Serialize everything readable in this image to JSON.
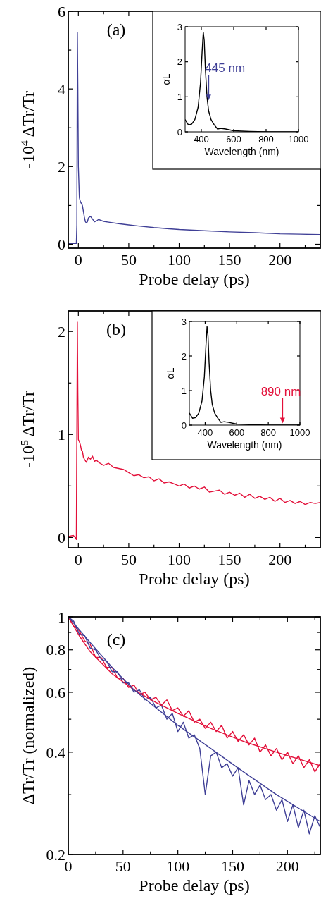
{
  "chart_data": [
    {
      "type": "line",
      "title": "(a)",
      "xlabel": "Probe delay (ps)",
      "ylabel": "-10$^{4}$ ΔTr/Tr",
      "xlim": [
        -10,
        240
      ],
      "ylim": [
        -0.1,
        6
      ],
      "xticks": [
        0,
        {
          "value": 25,
          "label": null
        },
        50,
        {
          "value": 75,
          "label": null
        },
        100,
        {
          "value": 125,
          "label": null
        },
        150,
        {
          "value": 175,
          "label": null
        },
        200,
        {
          "value": 225,
          "label": null
        }
      ],
      "yticks": [
        0,
        {
          "value": 1,
          "label": null
        },
        2,
        {
          "value": 3,
          "label": null
        },
        4,
        {
          "value": 5,
          "label": null
        },
        6
      ],
      "series": [
        {
          "color": "#3f3f96",
          "x": [
            -10,
            -2,
            -1.5,
            -1,
            -0.5,
            0,
            1,
            2,
            3,
            4,
            5,
            6,
            7,
            8,
            9,
            10,
            12,
            14,
            16,
            18,
            20,
            22,
            25,
            30,
            40,
            50,
            60,
            75,
            90,
            100,
            125,
            150,
            175,
            200,
            220,
            240
          ],
          "values": [
            0.02,
            0.02,
            0.5,
            5.45,
            4.0,
            2.0,
            1.2,
            1.1,
            1.05,
            1.0,
            0.85,
            0.7,
            0.58,
            0.55,
            0.58,
            0.68,
            0.72,
            0.65,
            0.58,
            0.6,
            0.64,
            0.62,
            0.59,
            0.57,
            0.53,
            0.5,
            0.47,
            0.43,
            0.4,
            0.38,
            0.35,
            0.32,
            0.3,
            0.27,
            0.26,
            0.25
          ]
        }
      ]
    },
    {
      "type": "line",
      "xlabel": "Wavelength (nm)",
      "ylabel": "αL",
      "xlim": [
        300,
        1000
      ],
      "ylim": [
        0,
        3
      ],
      "xticks": [
        400,
        600,
        800,
        1000
      ],
      "yticks": [
        0,
        1,
        2,
        3
      ],
      "annotations": [
        {
          "text": "445 nm",
          "x": 445,
          "y": 0.9
        }
      ],
      "series": [
        {
          "color": "#000000",
          "x": [
            300,
            320,
            340,
            360,
            380,
            395,
            405,
            412,
            418,
            425,
            435,
            445,
            460,
            480,
            500,
            520,
            550,
            600,
            700,
            800,
            1000
          ],
          "values": [
            0.35,
            0.2,
            0.22,
            0.35,
            0.7,
            1.4,
            2.3,
            2.85,
            2.6,
            1.8,
            1.0,
            0.6,
            0.35,
            0.2,
            0.08,
            0.1,
            0.08,
            0.03,
            0.01,
            0,
            0
          ]
        }
      ]
    },
    {
      "type": "line",
      "title": "(b)",
      "xlabel": "Probe delay (ps)",
      "ylabel": "-10$^{5}$ ΔTr/Tr",
      "xlim": [
        -10,
        240
      ],
      "ylim": [
        -0.1,
        2.2
      ],
      "xticks": [
        0,
        {
          "value": 25,
          "label": null
        },
        50,
        {
          "value": 75,
          "label": null
        },
        100,
        {
          "value": 125,
          "label": null
        },
        150,
        {
          "value": 175,
          "label": null
        },
        200,
        {
          "value": 225,
          "label": null
        }
      ],
      "yticks": [
        0,
        {
          "value": 0.5,
          "label": null
        },
        1,
        {
          "value": 1.5,
          "label": null
        },
        2
      ],
      "series": [
        {
          "color": "#e3103a",
          "x": [
            -10,
            -5,
            -3,
            -2,
            -1.5,
            -1,
            -0.5,
            0,
            1,
            2,
            3,
            4,
            5,
            6,
            8,
            10,
            12,
            14,
            16,
            18,
            20,
            25,
            30,
            35,
            40,
            45,
            50,
            55,
            60,
            65,
            70,
            75,
            80,
            85,
            90,
            95,
            100,
            105,
            110,
            115,
            120,
            125,
            130,
            135,
            140,
            145,
            150,
            155,
            160,
            165,
            170,
            175,
            180,
            185,
            190,
            195,
            200,
            205,
            210,
            215,
            220,
            225,
            230,
            235,
            240
          ],
          "values": [
            0.01,
            0.02,
            0,
            -0.02,
            1.0,
            2.09,
            1.4,
            0.95,
            0.93,
            0.9,
            0.85,
            0.84,
            0.78,
            0.76,
            0.73,
            0.78,
            0.76,
            0.79,
            0.74,
            0.75,
            0.73,
            0.7,
            0.72,
            0.68,
            0.67,
            0.66,
            0.63,
            0.6,
            0.61,
            0.58,
            0.59,
            0.55,
            0.57,
            0.53,
            0.54,
            0.52,
            0.5,
            0.52,
            0.48,
            0.5,
            0.47,
            0.49,
            0.44,
            0.45,
            0.46,
            0.42,
            0.44,
            0.41,
            0.43,
            0.39,
            0.42,
            0.38,
            0.4,
            0.37,
            0.39,
            0.35,
            0.38,
            0.34,
            0.36,
            0.33,
            0.35,
            0.32,
            0.34,
            0.33,
            0.34
          ]
        }
      ]
    },
    {
      "type": "line",
      "xlabel": "Wavelength (nm)",
      "ylabel": "αL",
      "xlim": [
        300,
        1000
      ],
      "ylim": [
        0,
        3
      ],
      "xticks": [
        400,
        600,
        800,
        1000
      ],
      "yticks": [
        0,
        1,
        2,
        3
      ],
      "annotations": [
        {
          "text": "890 nm",
          "x": 890,
          "y": 0.05
        }
      ],
      "series": [
        {
          "color": "#000000",
          "x": [
            300,
            320,
            340,
            360,
            380,
            395,
            405,
            412,
            418,
            425,
            435,
            445,
            460,
            480,
            500,
            520,
            550,
            600,
            700,
            800,
            1000
          ],
          "values": [
            0.35,
            0.2,
            0.22,
            0.35,
            0.7,
            1.4,
            2.3,
            2.85,
            2.6,
            1.8,
            1.0,
            0.6,
            0.35,
            0.2,
            0.08,
            0.1,
            0.08,
            0.03,
            0.01,
            0,
            0
          ]
        }
      ]
    },
    {
      "type": "line",
      "title": "(c)",
      "xlabel": "Probe delay (ps)",
      "ylabel": "ΔTr/Tr (normalized)",
      "log": "y",
      "xlim": [
        0,
        230
      ],
      "ylim": [
        0.2,
        1
      ],
      "xticks": [
        0,
        {
          "value": 25,
          "label": null
        },
        50,
        {
          "value": 75,
          "label": null
        },
        100,
        {
          "value": 125,
          "label": null
        },
        150,
        {
          "value": 175,
          "label": null
        },
        200,
        {
          "value": 225,
          "label": null
        }
      ],
      "yticks": [
        0.2,
        {
          "value": 0.3,
          "label": null
        },
        0.4,
        {
          "value": 0.5,
          "label": null
        },
        0.6,
        {
          "value": 0.7,
          "label": null
        },
        0.8,
        {
          "value": 0.9,
          "label": null
        },
        1
      ],
      "series": [
        {
          "color": "#e3103a",
          "x": [
            0,
            5,
            10,
            15,
            20,
            25,
            30,
            35,
            40,
            45,
            50,
            55,
            60,
            65,
            70,
            75,
            80,
            85,
            90,
            95,
            100,
            105,
            110,
            115,
            120,
            125,
            130,
            135,
            140,
            145,
            150,
            155,
            160,
            165,
            170,
            175,
            180,
            185,
            190,
            195,
            200,
            205,
            210,
            215,
            220,
            225,
            230
          ],
          "values": [
            1,
            0.94,
            0.91,
            0.85,
            0.83,
            0.76,
            0.76,
            0.71,
            0.71,
            0.66,
            0.66,
            0.62,
            0.63,
            0.59,
            0.6,
            0.57,
            0.58,
            0.55,
            0.57,
            0.53,
            0.54,
            0.51,
            0.53,
            0.49,
            0.5,
            0.47,
            0.49,
            0.46,
            0.48,
            0.44,
            0.46,
            0.43,
            0.45,
            0.42,
            0.44,
            0.4,
            0.42,
            0.39,
            0.41,
            0.38,
            0.4,
            0.37,
            0.39,
            0.36,
            0.38,
            0.35,
            0.37
          ]
        },
        {
          "color": "#3f3f96",
          "x": [
            0,
            5,
            10,
            15,
            20,
            25,
            30,
            35,
            40,
            45,
            50,
            55,
            60,
            65,
            70,
            75,
            80,
            85,
            90,
            95,
            100,
            105,
            110,
            115,
            120,
            125,
            130,
            135,
            140,
            145,
            150,
            155,
            160,
            165,
            170,
            175,
            180,
            185,
            190,
            195,
            200,
            205,
            210,
            215,
            220,
            225,
            230
          ],
          "values": [
            1,
            0.97,
            0.89,
            0.88,
            0.81,
            0.8,
            0.75,
            0.74,
            0.69,
            0.69,
            0.64,
            0.64,
            0.6,
            0.61,
            0.57,
            0.58,
            0.54,
            0.55,
            0.5,
            0.52,
            0.46,
            0.49,
            0.44,
            0.45,
            0.41,
            0.3,
            0.39,
            0.4,
            0.36,
            0.37,
            0.34,
            0.36,
            0.28,
            0.33,
            0.3,
            0.32,
            0.29,
            0.3,
            0.27,
            0.29,
            0.25,
            0.28,
            0.24,
            0.27,
            0.23,
            0.26,
            0.24
          ]
        },
        {
          "color": "#e3103a",
          "x": [
            0,
            10,
            20,
            40,
            60,
            80,
            100,
            130,
            160,
            190,
            230
          ],
          "values": [
            1,
            0.88,
            0.79,
            0.68,
            0.61,
            0.56,
            0.52,
            0.47,
            0.43,
            0.4,
            0.365
          ]
        },
        {
          "color": "#3f3f96",
          "x": [
            0,
            20,
            40,
            60,
            80,
            100,
            130,
            160,
            190,
            230
          ],
          "values": [
            1,
            0.84,
            0.71,
            0.61,
            0.54,
            0.48,
            0.41,
            0.35,
            0.3,
            0.25
          ]
        }
      ]
    }
  ]
}
